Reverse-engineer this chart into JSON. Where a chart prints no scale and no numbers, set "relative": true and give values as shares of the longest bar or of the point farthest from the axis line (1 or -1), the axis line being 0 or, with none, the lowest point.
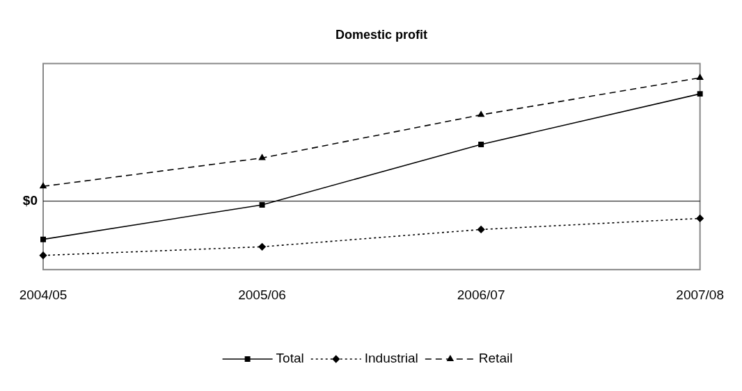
{
  "chart_data": {
    "type": "line",
    "title": "Domestic profit",
    "categories": [
      "2004/05",
      "2005/06",
      "2006/07",
      "2007/08"
    ],
    "relative": true,
    "legend": "bottom",
    "grid": false,
    "ref_lines": [
      {
        "axis": "y",
        "value": 0,
        "label": "$0",
        "color": "#000000"
      }
    ],
    "series": [
      {
        "name": "Total",
        "color": "#000000",
        "marker": "square",
        "line_style": "solid",
        "values": [
          -0.31,
          -0.03,
          0.46,
          0.87
        ]
      },
      {
        "name": "Industrial",
        "color": "#000000",
        "marker": "diamond",
        "line_style": "dotted",
        "values": [
          -0.44,
          -0.37,
          -0.23,
          -0.14
        ]
      },
      {
        "name": "Retail",
        "color": "#000000",
        "marker": "triangle",
        "line_style": "dashed",
        "values": [
          0.12,
          0.35,
          0.7,
          1
        ]
      }
    ]
  }
}
